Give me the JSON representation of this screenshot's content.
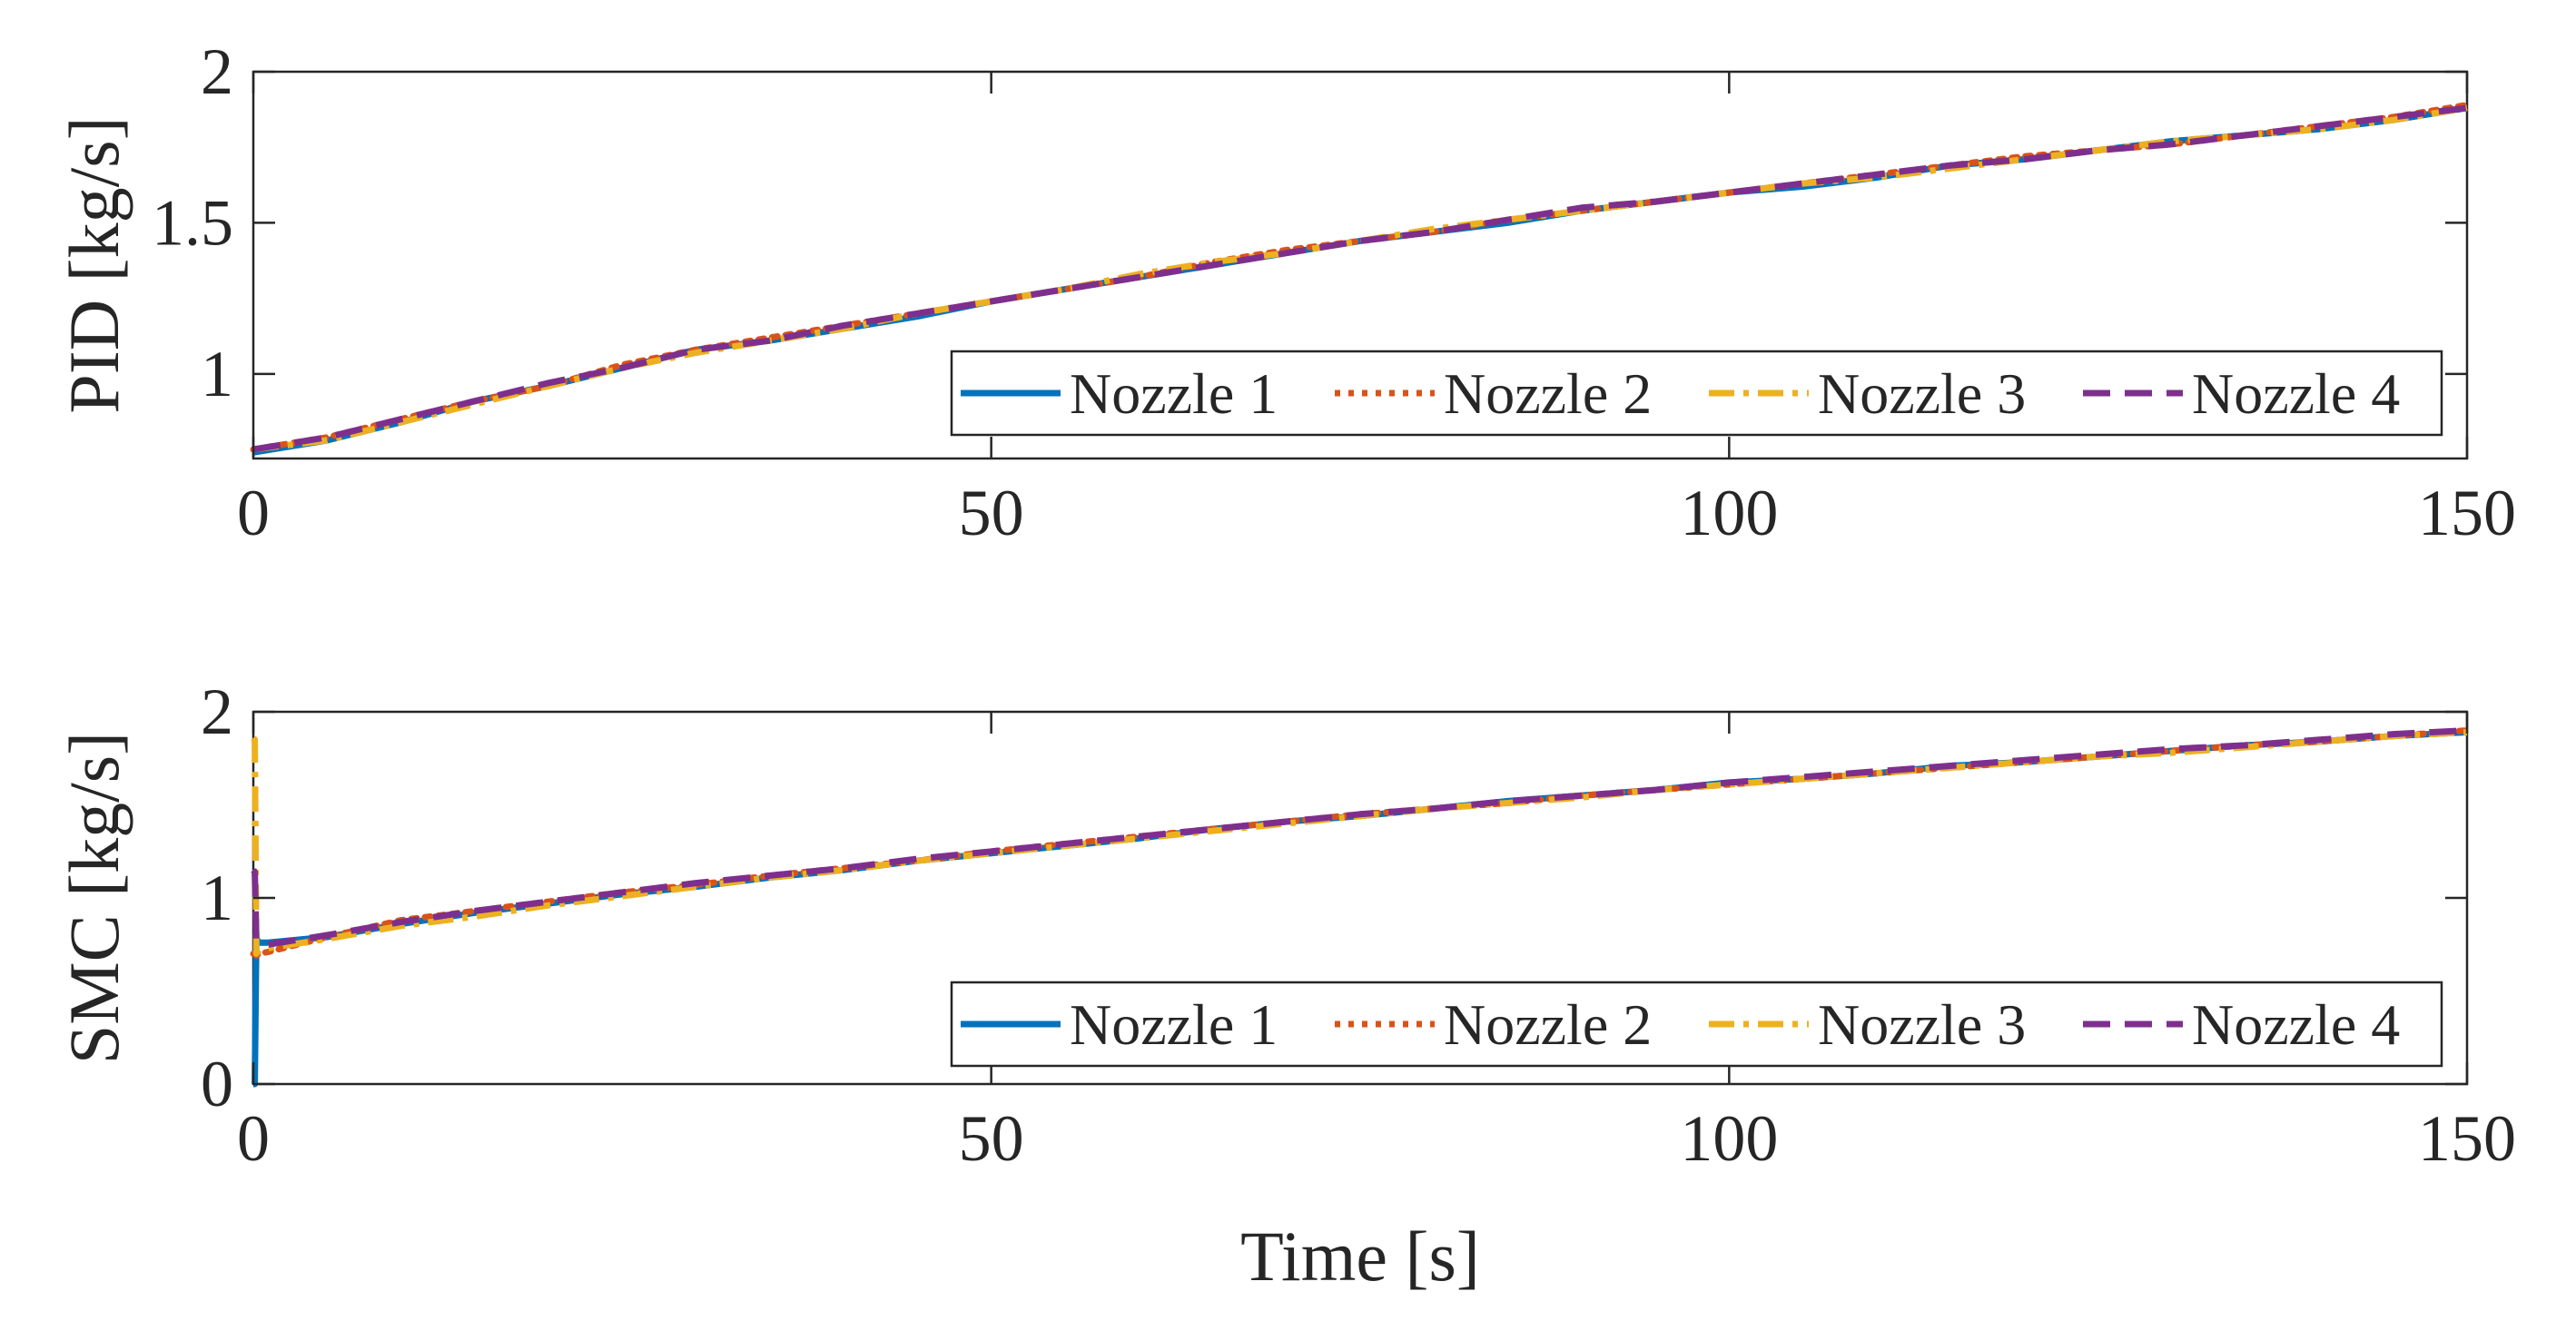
{
  "chart_data": [
    {
      "type": "line",
      "ylabel": "PID [kg/s]",
      "xlabel": "",
      "xlim": [
        0,
        150
      ],
      "ylim": [
        0.72,
        2.0
      ],
      "xticks": [
        0,
        50,
        100,
        150
      ],
      "xtick_labels": [
        "0",
        "50",
        "100",
        "150"
      ],
      "yticks": [
        1,
        1.5,
        2
      ],
      "ytick_labels": [
        "1",
        "1.5",
        "2"
      ],
      "legend_position": "bottom-right",
      "x": [
        0,
        5,
        10,
        15,
        20,
        25,
        30,
        35,
        40,
        45,
        50,
        55,
        60,
        65,
        70,
        75,
        80,
        85,
        90,
        95,
        100,
        105,
        110,
        115,
        120,
        125,
        130,
        135,
        140,
        145,
        150
      ],
      "series": [
        {
          "name": "Nozzle 1",
          "color": "#0072BD",
          "dash": "solid",
          "values": [
            0.74,
            0.78,
            0.84,
            0.91,
            0.96,
            1.02,
            1.08,
            1.11,
            1.15,
            1.19,
            1.24,
            1.28,
            1.32,
            1.36,
            1.4,
            1.44,
            1.47,
            1.5,
            1.54,
            1.57,
            1.6,
            1.62,
            1.65,
            1.69,
            1.71,
            1.74,
            1.77,
            1.79,
            1.81,
            1.84,
            1.88
          ]
        },
        {
          "name": "Nozzle 2",
          "color": "#D95319",
          "dash": "dotted",
          "values": [
            0.75,
            0.79,
            0.85,
            0.91,
            0.96,
            1.03,
            1.08,
            1.12,
            1.16,
            1.2,
            1.24,
            1.28,
            1.32,
            1.37,
            1.41,
            1.44,
            1.47,
            1.51,
            1.54,
            1.57,
            1.6,
            1.63,
            1.66,
            1.69,
            1.72,
            1.74,
            1.76,
            1.79,
            1.82,
            1.85,
            1.89
          ]
        },
        {
          "name": "Nozzle 3",
          "color": "#EDB120",
          "dash": "dashdot",
          "values": [
            0.75,
            0.78,
            0.84,
            0.9,
            0.96,
            1.02,
            1.07,
            1.11,
            1.15,
            1.2,
            1.24,
            1.28,
            1.33,
            1.37,
            1.4,
            1.44,
            1.48,
            1.51,
            1.54,
            1.57,
            1.6,
            1.63,
            1.65,
            1.68,
            1.71,
            1.74,
            1.77,
            1.79,
            1.81,
            1.84,
            1.88
          ]
        },
        {
          "name": "Nozzle 4",
          "color": "#7E2F8E",
          "dash": "dashed",
          "values": [
            0.75,
            0.79,
            0.85,
            0.91,
            0.97,
            1.02,
            1.08,
            1.11,
            1.16,
            1.2,
            1.24,
            1.28,
            1.32,
            1.36,
            1.4,
            1.44,
            1.47,
            1.51,
            1.55,
            1.57,
            1.6,
            1.63,
            1.66,
            1.69,
            1.71,
            1.74,
            1.76,
            1.79,
            1.82,
            1.85,
            1.88
          ]
        }
      ]
    },
    {
      "type": "line",
      "ylabel": "SMC [kg/s]",
      "xlabel": "Time [s]",
      "xlim": [
        0,
        150
      ],
      "ylim": [
        0,
        2.0
      ],
      "xticks": [
        0,
        50,
        100,
        150
      ],
      "xtick_labels": [
        "0",
        "50",
        "100",
        "150"
      ],
      "yticks": [
        0,
        1,
        2
      ],
      "ytick_labels": [
        "0",
        "1",
        "2"
      ],
      "legend_position": "bottom-right",
      "x": [
        0,
        0.1,
        0.2,
        0.4,
        1,
        5,
        10,
        15,
        20,
        25,
        30,
        35,
        40,
        45,
        50,
        55,
        60,
        65,
        70,
        75,
        80,
        85,
        90,
        95,
        100,
        105,
        110,
        115,
        120,
        125,
        130,
        135,
        140,
        145,
        150
      ],
      "series": [
        {
          "name": "Nozzle 1",
          "color": "#0072BD",
          "dash": "solid",
          "values": [
            0.0,
            0.0,
            0.78,
            0.76,
            0.76,
            0.79,
            0.86,
            0.92,
            0.97,
            1.02,
            1.06,
            1.11,
            1.15,
            1.2,
            1.24,
            1.28,
            1.32,
            1.37,
            1.41,
            1.44,
            1.48,
            1.52,
            1.55,
            1.58,
            1.62,
            1.64,
            1.67,
            1.71,
            1.73,
            1.76,
            1.79,
            1.82,
            1.84,
            1.87,
            1.89
          ]
        },
        {
          "name": "Nozzle 2",
          "color": "#D95319",
          "dash": "dotted",
          "values": [
            0.7,
            0.7,
            0.69,
            0.7,
            0.71,
            0.79,
            0.88,
            0.93,
            0.98,
            1.03,
            1.07,
            1.12,
            1.16,
            1.2,
            1.25,
            1.29,
            1.33,
            1.37,
            1.41,
            1.45,
            1.48,
            1.51,
            1.55,
            1.58,
            1.61,
            1.64,
            1.67,
            1.7,
            1.73,
            1.76,
            1.79,
            1.82,
            1.84,
            1.87,
            1.9
          ]
        },
        {
          "name": "Nozzle 3",
          "color": "#EDB120",
          "dash": "dashdot",
          "values": [
            1.86,
            1.85,
            0.7,
            0.72,
            0.73,
            0.78,
            0.85,
            0.9,
            0.96,
            1.01,
            1.06,
            1.11,
            1.15,
            1.2,
            1.24,
            1.28,
            1.32,
            1.36,
            1.4,
            1.44,
            1.48,
            1.51,
            1.54,
            1.58,
            1.61,
            1.64,
            1.67,
            1.7,
            1.73,
            1.76,
            1.78,
            1.81,
            1.84,
            1.87,
            1.89
          ]
        },
        {
          "name": "Nozzle 4",
          "color": "#7E2F8E",
          "dash": "dashed",
          "values": [
            1.15,
            1.14,
            0.78,
            0.76,
            0.75,
            0.8,
            0.87,
            0.93,
            0.98,
            1.03,
            1.08,
            1.12,
            1.16,
            1.21,
            1.25,
            1.29,
            1.33,
            1.37,
            1.41,
            1.45,
            1.48,
            1.52,
            1.55,
            1.58,
            1.62,
            1.65,
            1.68,
            1.71,
            1.74,
            1.77,
            1.8,
            1.82,
            1.85,
            1.88,
            1.9
          ]
        }
      ]
    }
  ]
}
